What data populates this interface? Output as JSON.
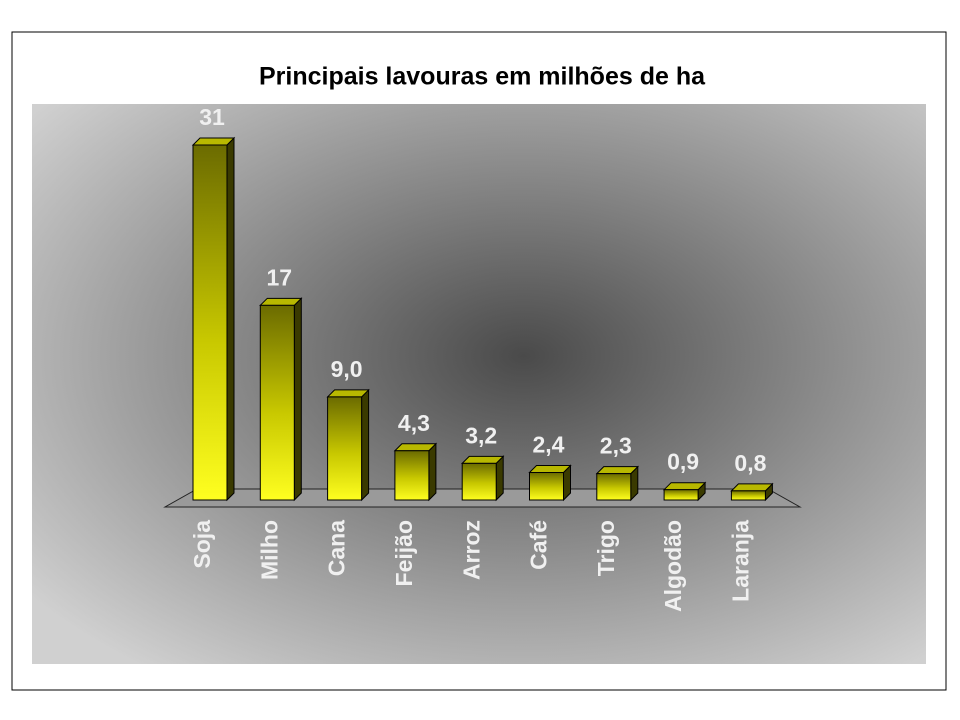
{
  "chart_data": {
    "type": "bar3d",
    "title": "Principais lavouras em milhões de ha",
    "categories": [
      "Soja",
      "Milho",
      "Cana",
      "Feijão",
      "Arroz",
      "Café",
      "Trigo",
      "Algodão",
      "Laranja"
    ],
    "values": [
      31,
      17,
      9.0,
      4.3,
      3.2,
      2.4,
      2.3,
      0.9,
      0.8
    ],
    "value_labels": [
      "31",
      "17",
      "9,0",
      "4,3",
      "3,2",
      "2,4",
      "2,3",
      "0,9",
      "0,8"
    ],
    "color": "#ffff00"
  }
}
